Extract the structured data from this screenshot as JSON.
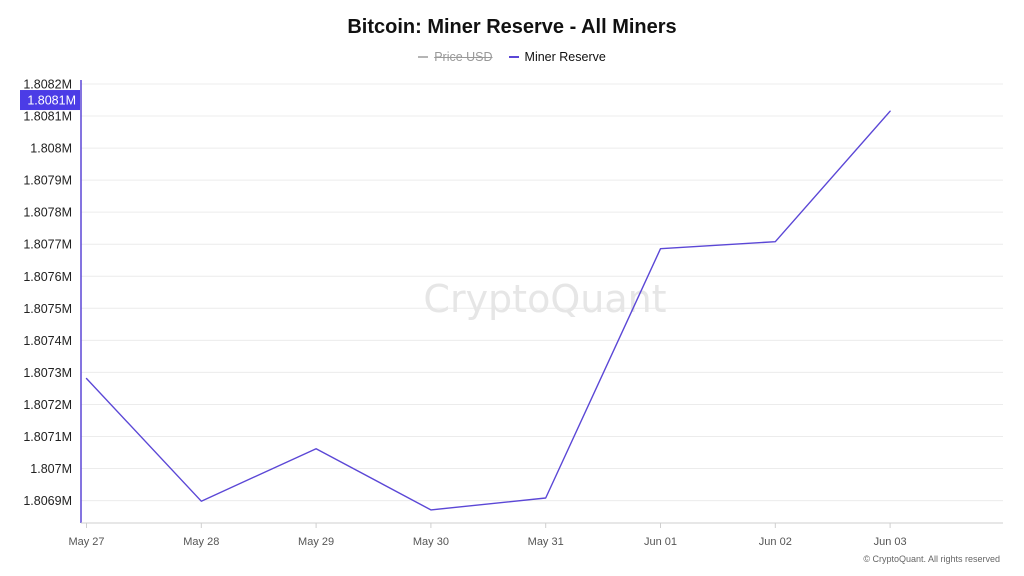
{
  "title": "Bitcoin: Miner Reserve - All Miners",
  "legend": {
    "items": [
      {
        "label": "Price USD",
        "color": "#b5b5b5",
        "hidden": true
      },
      {
        "label": "Miner Reserve",
        "color": "#5b47d6",
        "hidden": false
      }
    ]
  },
  "watermark": "CryptoQuant",
  "copyright": "© CryptoQuant. All rights reserved",
  "colors": {
    "series": "#5b47d6",
    "axis_accent": "#5b47d6",
    "crosshair_bg": "#4b3ce6",
    "grid": "#ececec"
  },
  "chart_data": {
    "type": "line",
    "title": "Bitcoin: Miner Reserve - All Miners",
    "categories": [
      "May 27",
      "May 28",
      "May 29",
      "May 30",
      "May 31",
      "Jun 01",
      "Jun 02",
      "Jun 03"
    ],
    "x_range": [
      0,
      8
    ],
    "series": [
      {
        "name": "Miner Reserve",
        "color": "#5b47d6",
        "values": [
          1807281,
          1806898,
          1807062,
          1806871,
          1806908,
          1807686,
          1807708,
          1808115
        ]
      }
    ],
    "ylim": [
      1806830,
      1808200
    ],
    "y_ticks": [
      {
        "value": 1806900,
        "label": "1.8069M"
      },
      {
        "value": 1807000,
        "label": "1.807M"
      },
      {
        "value": 1807100,
        "label": "1.8071M"
      },
      {
        "value": 1807200,
        "label": "1.8072M"
      },
      {
        "value": 1807300,
        "label": "1.8073M"
      },
      {
        "value": 1807400,
        "label": "1.8074M"
      },
      {
        "value": 1807500,
        "label": "1.8075M"
      },
      {
        "value": 1807600,
        "label": "1.8076M"
      },
      {
        "value": 1807700,
        "label": "1.8077M"
      },
      {
        "value": 1807800,
        "label": "1.8078M"
      },
      {
        "value": 1807900,
        "label": "1.8079M"
      },
      {
        "value": 1808000,
        "label": "1.808M"
      },
      {
        "value": 1808100,
        "label": "1.8081M"
      },
      {
        "value": 1808200,
        "label": "1.8082M"
      }
    ],
    "crosshair": {
      "value": 1808150,
      "label": "1.8081M"
    },
    "grid": true
  }
}
